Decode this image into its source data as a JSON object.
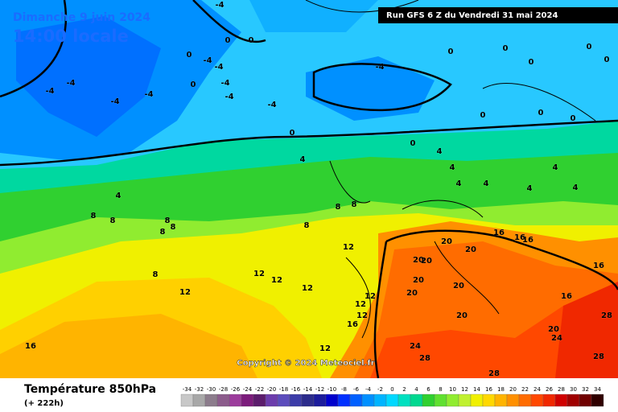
{
  "header": {
    "date": "Dimanche 9 juin 2024",
    "time": "14:00 locale",
    "run": "Run GFS 6 Z du Vendredi 31 mai 2024"
  },
  "copyright": "Copyright © 2024 Meteociel.fr",
  "footer": {
    "title": "Température 850hPa",
    "lead": "(+ 222h)"
  },
  "legend": {
    "scale": [
      -34,
      -32,
      -30,
      -28,
      -26,
      -24,
      -22,
      -20,
      -18,
      -16,
      -14,
      -12,
      -10,
      -8,
      -6,
      -4,
      -2,
      0,
      2,
      4,
      6,
      8,
      10,
      12,
      14,
      16,
      18,
      20,
      22,
      24,
      26,
      28,
      30,
      32,
      34
    ],
    "colors": [
      "#c8c8c8",
      "#a8a8a8",
      "#8c7c8c",
      "#8c5c8c",
      "#9c3c9c",
      "#7c1c7c",
      "#5c1c6c",
      "#6c3cac",
      "#5c4cbc",
      "#3c3ca8",
      "#2c2c8c",
      "#1c1c9c",
      "#0000cc",
      "#0030ff",
      "#0060ff",
      "#0090ff",
      "#00b4ff",
      "#00d8ff",
      "#00e0c0",
      "#00d890",
      "#30d030",
      "#60e030",
      "#90ec30",
      "#c0f030",
      "#f0f000",
      "#ffd800",
      "#ffb400",
      "#ff9000",
      "#ff6c00",
      "#ff4800",
      "#f02800",
      "#d00000",
      "#a00000",
      "#700000",
      "#300000"
    ]
  },
  "map_labels": [
    -4,
    0,
    0,
    -4,
    -4,
    0,
    -4,
    -4,
    -4,
    -4,
    0,
    -4,
    -4,
    -4,
    0,
    -4,
    0,
    0,
    0,
    0,
    0,
    0,
    0,
    0,
    0,
    4,
    4,
    4,
    4,
    4,
    4,
    4,
    4,
    4,
    8,
    8,
    8,
    8,
    8,
    8,
    8,
    8,
    8,
    12,
    12,
    12,
    12,
    12,
    12,
    12,
    12,
    12,
    16,
    16,
    16,
    16,
    16,
    16,
    16,
    20,
    20,
    20,
    20,
    20,
    20,
    20,
    20,
    20,
    24,
    24,
    28,
    28,
    28,
    28
  ]
}
